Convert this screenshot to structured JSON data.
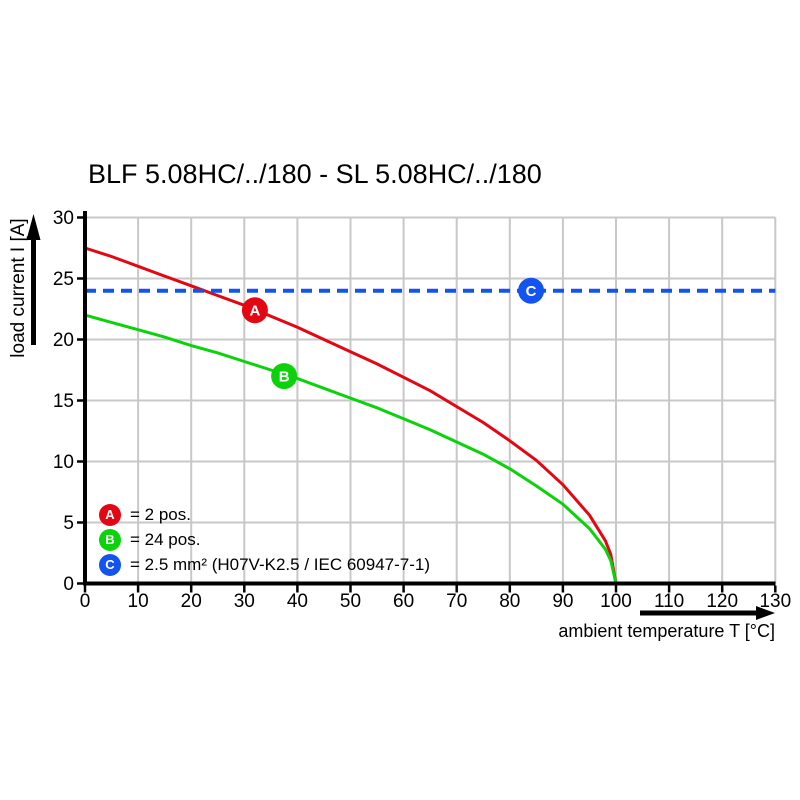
{
  "chart_data": {
    "type": "line",
    "title": "BLF 5.08HC/../180 - SL 5.08HC/../180",
    "xlabel": "ambient temperature T [°C]",
    "ylabel": "load current I [A]",
    "xlim": [
      0,
      130
    ],
    "ylim": [
      0,
      30
    ],
    "x_ticks": [
      0,
      10,
      20,
      30,
      40,
      50,
      60,
      70,
      80,
      90,
      100,
      110,
      120,
      130
    ],
    "y_ticks": [
      0,
      5,
      10,
      15,
      20,
      25,
      30
    ],
    "grid": true,
    "legend_position": "inside-bottom-left",
    "colors": {
      "grid": "#c8c8c8",
      "axis": "#000000"
    },
    "series": [
      {
        "name": "A",
        "legend": "= 2 pos.",
        "color": "#e30613",
        "style": "solid",
        "points": [
          [
            0,
            27.5
          ],
          [
            5,
            26.8
          ],
          [
            10,
            26.0
          ],
          [
            15,
            25.2
          ],
          [
            20,
            24.4
          ],
          [
            25,
            23.6
          ],
          [
            30,
            22.8
          ],
          [
            35,
            21.9
          ],
          [
            40,
            21.0
          ],
          [
            45,
            20.0
          ],
          [
            50,
            19.0
          ],
          [
            55,
            18.0
          ],
          [
            60,
            16.9
          ],
          [
            65,
            15.8
          ],
          [
            70,
            14.5
          ],
          [
            75,
            13.2
          ],
          [
            80,
            11.7
          ],
          [
            85,
            10.1
          ],
          [
            90,
            8.1
          ],
          [
            95,
            5.6
          ],
          [
            98,
            3.5
          ],
          [
            99,
            2.4
          ],
          [
            100,
            0
          ]
        ]
      },
      {
        "name": "B",
        "legend": "= 24 pos.",
        "color": "#0bd20b",
        "style": "solid",
        "points": [
          [
            0,
            22.0
          ],
          [
            5,
            21.4
          ],
          [
            10,
            20.8
          ],
          [
            15,
            20.2
          ],
          [
            20,
            19.5
          ],
          [
            25,
            18.9
          ],
          [
            30,
            18.2
          ],
          [
            35,
            17.5
          ],
          [
            40,
            16.8
          ],
          [
            45,
            16.0
          ],
          [
            50,
            15.2
          ],
          [
            55,
            14.4
          ],
          [
            60,
            13.5
          ],
          [
            65,
            12.6
          ],
          [
            70,
            11.6
          ],
          [
            75,
            10.6
          ],
          [
            80,
            9.4
          ],
          [
            85,
            8.0
          ],
          [
            90,
            6.5
          ],
          [
            95,
            4.5
          ],
          [
            98,
            2.8
          ],
          [
            99,
            1.9
          ],
          [
            100,
            0
          ]
        ]
      },
      {
        "name": "C",
        "legend": "= 2.5 mm² (H07V-K2.5 / IEC 60947-7-1)",
        "color": "#1353f0",
        "style": "dashed",
        "points": [
          [
            0,
            24
          ],
          [
            130,
            24
          ]
        ]
      }
    ],
    "markers": [
      {
        "letter": "A",
        "x": 32,
        "y": 22.4,
        "color": "#e30613"
      },
      {
        "letter": "B",
        "x": 37.5,
        "y": 17.0,
        "color": "#0bd20b"
      },
      {
        "letter": "C",
        "x": 84,
        "y": 24.0,
        "color": "#1353f0"
      }
    ]
  }
}
